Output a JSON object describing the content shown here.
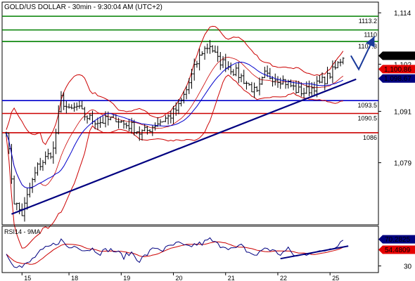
{
  "chart_data": [
    {
      "type": "candlestick",
      "title": "GOLD/US DOLLAR - 30min - 9:30:04 AM (UTC+2)",
      "y_ticks": [
        1114,
        1102,
        1091,
        1079
      ],
      "ylim": [
        1064.5,
        1116.5
      ],
      "x_ticks": [
        "15",
        "18",
        "19",
        "20",
        "21",
        "22",
        "25"
      ],
      "x_tick_index": [
        6,
        24,
        44,
        64,
        84,
        104,
        124
      ],
      "n_bars": 130,
      "price_path": [
        [
          0,
          1087
        ],
        [
          3,
          1070
        ],
        [
          6,
          1067
        ],
        [
          9,
          1073
        ],
        [
          12,
          1078
        ],
        [
          15,
          1080
        ],
        [
          18,
          1082
        ],
        [
          21,
          1094
        ],
        [
          24,
          1091
        ],
        [
          27,
          1092
        ],
        [
          30,
          1090
        ],
        [
          33,
          1089
        ],
        [
          36,
          1088.5
        ],
        [
          39,
          1089
        ],
        [
          42,
          1089.5
        ],
        [
          45,
          1088
        ],
        [
          48,
          1087.5
        ],
        [
          51,
          1086
        ],
        [
          54,
          1086.5
        ],
        [
          57,
          1088
        ],
        [
          60,
          1089
        ],
        [
          63,
          1090
        ],
        [
          66,
          1092
        ],
        [
          69,
          1096
        ],
        [
          72,
          1101
        ],
        [
          75,
          1105
        ],
        [
          78,
          1106.5
        ],
        [
          81,
          1103
        ],
        [
          84,
          1102
        ],
        [
          87,
          1100.5
        ],
        [
          90,
          1099
        ],
        [
          93,
          1097
        ],
        [
          96,
          1095
        ],
        [
          99,
          1099.5
        ],
        [
          102,
          1099
        ],
        [
          105,
          1098.5
        ],
        [
          108,
          1097.5
        ],
        [
          111,
          1096
        ],
        [
          114,
          1095.5
        ],
        [
          117,
          1096.5
        ],
        [
          120,
          1097.5
        ],
        [
          123,
          1099
        ],
        [
          126,
          1101
        ],
        [
          129,
          1104
        ]
      ],
      "horizontal_levels": [
        {
          "value": 1113.2,
          "label": "1113.2",
          "color": "#008000"
        },
        {
          "value": 1110,
          "label": "1110",
          "color": "#008000"
        },
        {
          "value": 1107.3,
          "label": "1107.3",
          "color": "#008000"
        },
        {
          "value": 1093.5,
          "label": "1093.5",
          "color": "#0000cc"
        },
        {
          "value": 1090.5,
          "label": "1090.5",
          "color": "#cc0000"
        },
        {
          "value": 1086,
          "label": "1086",
          "color": "#cc0000"
        }
      ],
      "trendline": {
        "from": [
          2,
          1067
        ],
        "to": [
          134,
          1098.5
        ],
        "color": "#000080"
      },
      "forecast_arrow": {
        "points": [
          [
            132,
            1104
          ],
          [
            135,
            1100.8
          ],
          [
            141,
            1108.5
          ]
        ],
        "color": "#1a3a9a"
      },
      "price_badges": [
        {
          "value": 1103.97,
          "label": "1,103.97",
          "bg": "#000000",
          "fg": "#ffffff"
        },
        {
          "value": 1100.86,
          "label": "1,100.86",
          "bg": "#e60000",
          "fg": "#ffffff"
        },
        {
          "value": 1098.67,
          "label": "1,098.67",
          "bg": "#000080",
          "fg": "#ffffff"
        }
      ]
    },
    {
      "type": "line",
      "title": "RSI14 - 9MA",
      "y_ticks": [
        30
      ],
      "ylim": [
        20,
        90
      ],
      "x_ticks": [
        "15",
        "18",
        "19",
        "20",
        "21",
        "22",
        "25"
      ],
      "rsi_path": [
        [
          0,
          48
        ],
        [
          3,
          32
        ],
        [
          6,
          28
        ],
        [
          9,
          36
        ],
        [
          12,
          48
        ],
        [
          15,
          56
        ],
        [
          18,
          62
        ],
        [
          21,
          69
        ],
        [
          24,
          57
        ],
        [
          27,
          61
        ],
        [
          30,
          54
        ],
        [
          33,
          56
        ],
        [
          36,
          50
        ],
        [
          39,
          55
        ],
        [
          42,
          52
        ],
        [
          45,
          44
        ],
        [
          48,
          50
        ],
        [
          51,
          38
        ],
        [
          54,
          48
        ],
        [
          57,
          58
        ],
        [
          60,
          54
        ],
        [
          63,
          60
        ],
        [
          66,
          64
        ],
        [
          69,
          58
        ],
        [
          72,
          62
        ],
        [
          75,
          64
        ],
        [
          78,
          70
        ],
        [
          81,
          62
        ],
        [
          84,
          60
        ],
        [
          87,
          55
        ],
        [
          90,
          60
        ],
        [
          93,
          50
        ],
        [
          96,
          46
        ],
        [
          99,
          58
        ],
        [
          102,
          53
        ],
        [
          105,
          48
        ],
        [
          108,
          55
        ],
        [
          111,
          44
        ],
        [
          114,
          47
        ],
        [
          117,
          52
        ],
        [
          120,
          50
        ],
        [
          123,
          55
        ],
        [
          126,
          60
        ],
        [
          129,
          70
        ]
      ],
      "rsi_trendline": {
        "from": [
          105,
          41
        ],
        "to": [
          131,
          60
        ]
      },
      "badges": [
        {
          "value": 70.2825,
          "label": "70.2825",
          "bg": "#000080",
          "fg": "#ffffff"
        },
        {
          "value": 54.4809,
          "label": "54.4809",
          "bg": "#e60000",
          "fg": "#ffffff"
        }
      ]
    }
  ]
}
